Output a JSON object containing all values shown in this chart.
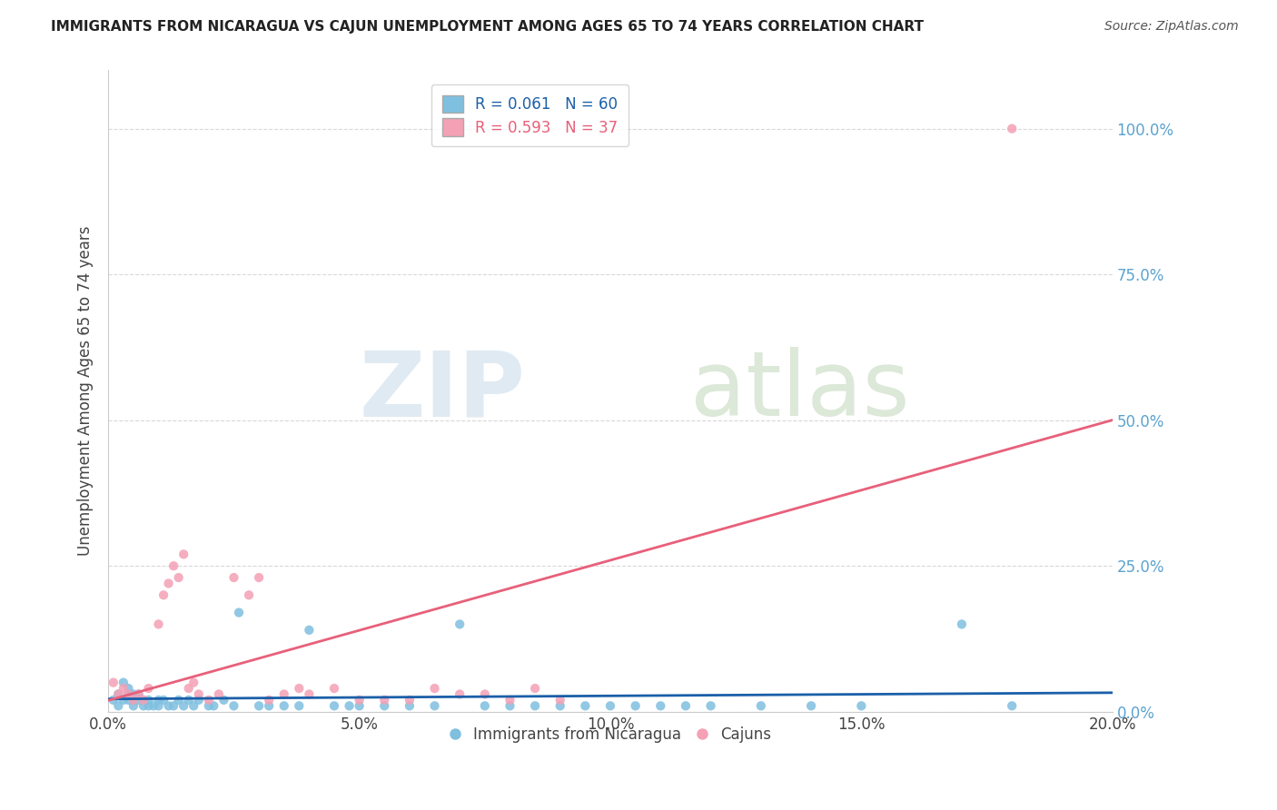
{
  "title": "IMMIGRANTS FROM NICARAGUA VS CAJUN UNEMPLOYMENT AMONG AGES 65 TO 74 YEARS CORRELATION CHART",
  "source": "Source: ZipAtlas.com",
  "ylabel": "Unemployment Among Ages 65 to 74 years",
  "xlim": [
    0.0,
    0.2
  ],
  "ylim": [
    0.0,
    1.1
  ],
  "ytick_labels": [
    "0.0%",
    "25.0%",
    "50.0%",
    "75.0%",
    "100.0%"
  ],
  "ytick_vals": [
    0.0,
    0.25,
    0.5,
    0.75,
    1.0
  ],
  "xtick_labels": [
    "0.0%",
    "5.0%",
    "10.0%",
    "15.0%",
    "20.0%"
  ],
  "xtick_vals": [
    0.0,
    0.05,
    0.1,
    0.15,
    0.2
  ],
  "blue_color": "#7fbfdf",
  "pink_color": "#f4a0b5",
  "blue_line_color": "#1a5fa8",
  "pink_line_color": "#e8607a",
  "right_axis_label_color": "#5ba3d0",
  "legend_blue_label": "Immigrants from Nicaragua",
  "legend_pink_label": "Cajuns",
  "R_blue": 0.061,
  "N_blue": 60,
  "R_pink": 0.593,
  "N_pink": 37,
  "watermark_zip": "ZIP",
  "watermark_atlas": "atlas",
  "blue_scatter_x": [
    0.001,
    0.002,
    0.002,
    0.003,
    0.003,
    0.004,
    0.004,
    0.004,
    0.005,
    0.005,
    0.005,
    0.006,
    0.006,
    0.007,
    0.007,
    0.008,
    0.008,
    0.009,
    0.01,
    0.01,
    0.011,
    0.012,
    0.013,
    0.014,
    0.015,
    0.016,
    0.017,
    0.018,
    0.02,
    0.021,
    0.023,
    0.025,
    0.026,
    0.03,
    0.032,
    0.035,
    0.038,
    0.04,
    0.045,
    0.048,
    0.05,
    0.055,
    0.06,
    0.065,
    0.07,
    0.075,
    0.08,
    0.085,
    0.09,
    0.095,
    0.1,
    0.105,
    0.11,
    0.115,
    0.12,
    0.13,
    0.14,
    0.15,
    0.17,
    0.18
  ],
  "blue_scatter_y": [
    0.02,
    0.01,
    0.03,
    0.02,
    0.05,
    0.02,
    0.03,
    0.04,
    0.01,
    0.02,
    0.03,
    0.02,
    0.03,
    0.01,
    0.02,
    0.01,
    0.02,
    0.01,
    0.02,
    0.01,
    0.02,
    0.01,
    0.01,
    0.02,
    0.01,
    0.02,
    0.01,
    0.02,
    0.01,
    0.01,
    0.02,
    0.01,
    0.17,
    0.01,
    0.01,
    0.01,
    0.01,
    0.14,
    0.01,
    0.01,
    0.01,
    0.01,
    0.01,
    0.01,
    0.15,
    0.01,
    0.01,
    0.01,
    0.01,
    0.01,
    0.01,
    0.01,
    0.01,
    0.01,
    0.01,
    0.01,
    0.01,
    0.01,
    0.15,
    0.01
  ],
  "pink_scatter_x": [
    0.001,
    0.002,
    0.003,
    0.004,
    0.005,
    0.006,
    0.007,
    0.008,
    0.01,
    0.011,
    0.012,
    0.013,
    0.014,
    0.015,
    0.016,
    0.017,
    0.018,
    0.02,
    0.022,
    0.025,
    0.028,
    0.03,
    0.032,
    0.035,
    0.038,
    0.04,
    0.045,
    0.05,
    0.055,
    0.06,
    0.065,
    0.07,
    0.075,
    0.08,
    0.085,
    0.09,
    0.18
  ],
  "pink_scatter_y": [
    0.05,
    0.03,
    0.04,
    0.03,
    0.02,
    0.03,
    0.02,
    0.04,
    0.15,
    0.2,
    0.22,
    0.25,
    0.23,
    0.27,
    0.04,
    0.05,
    0.03,
    0.02,
    0.03,
    0.23,
    0.2,
    0.23,
    0.02,
    0.03,
    0.04,
    0.03,
    0.04,
    0.02,
    0.02,
    0.02,
    0.04,
    0.03,
    0.03,
    0.02,
    0.04,
    0.02,
    1.0
  ],
  "background_color": "#ffffff",
  "grid_color": "#d8d8d8"
}
